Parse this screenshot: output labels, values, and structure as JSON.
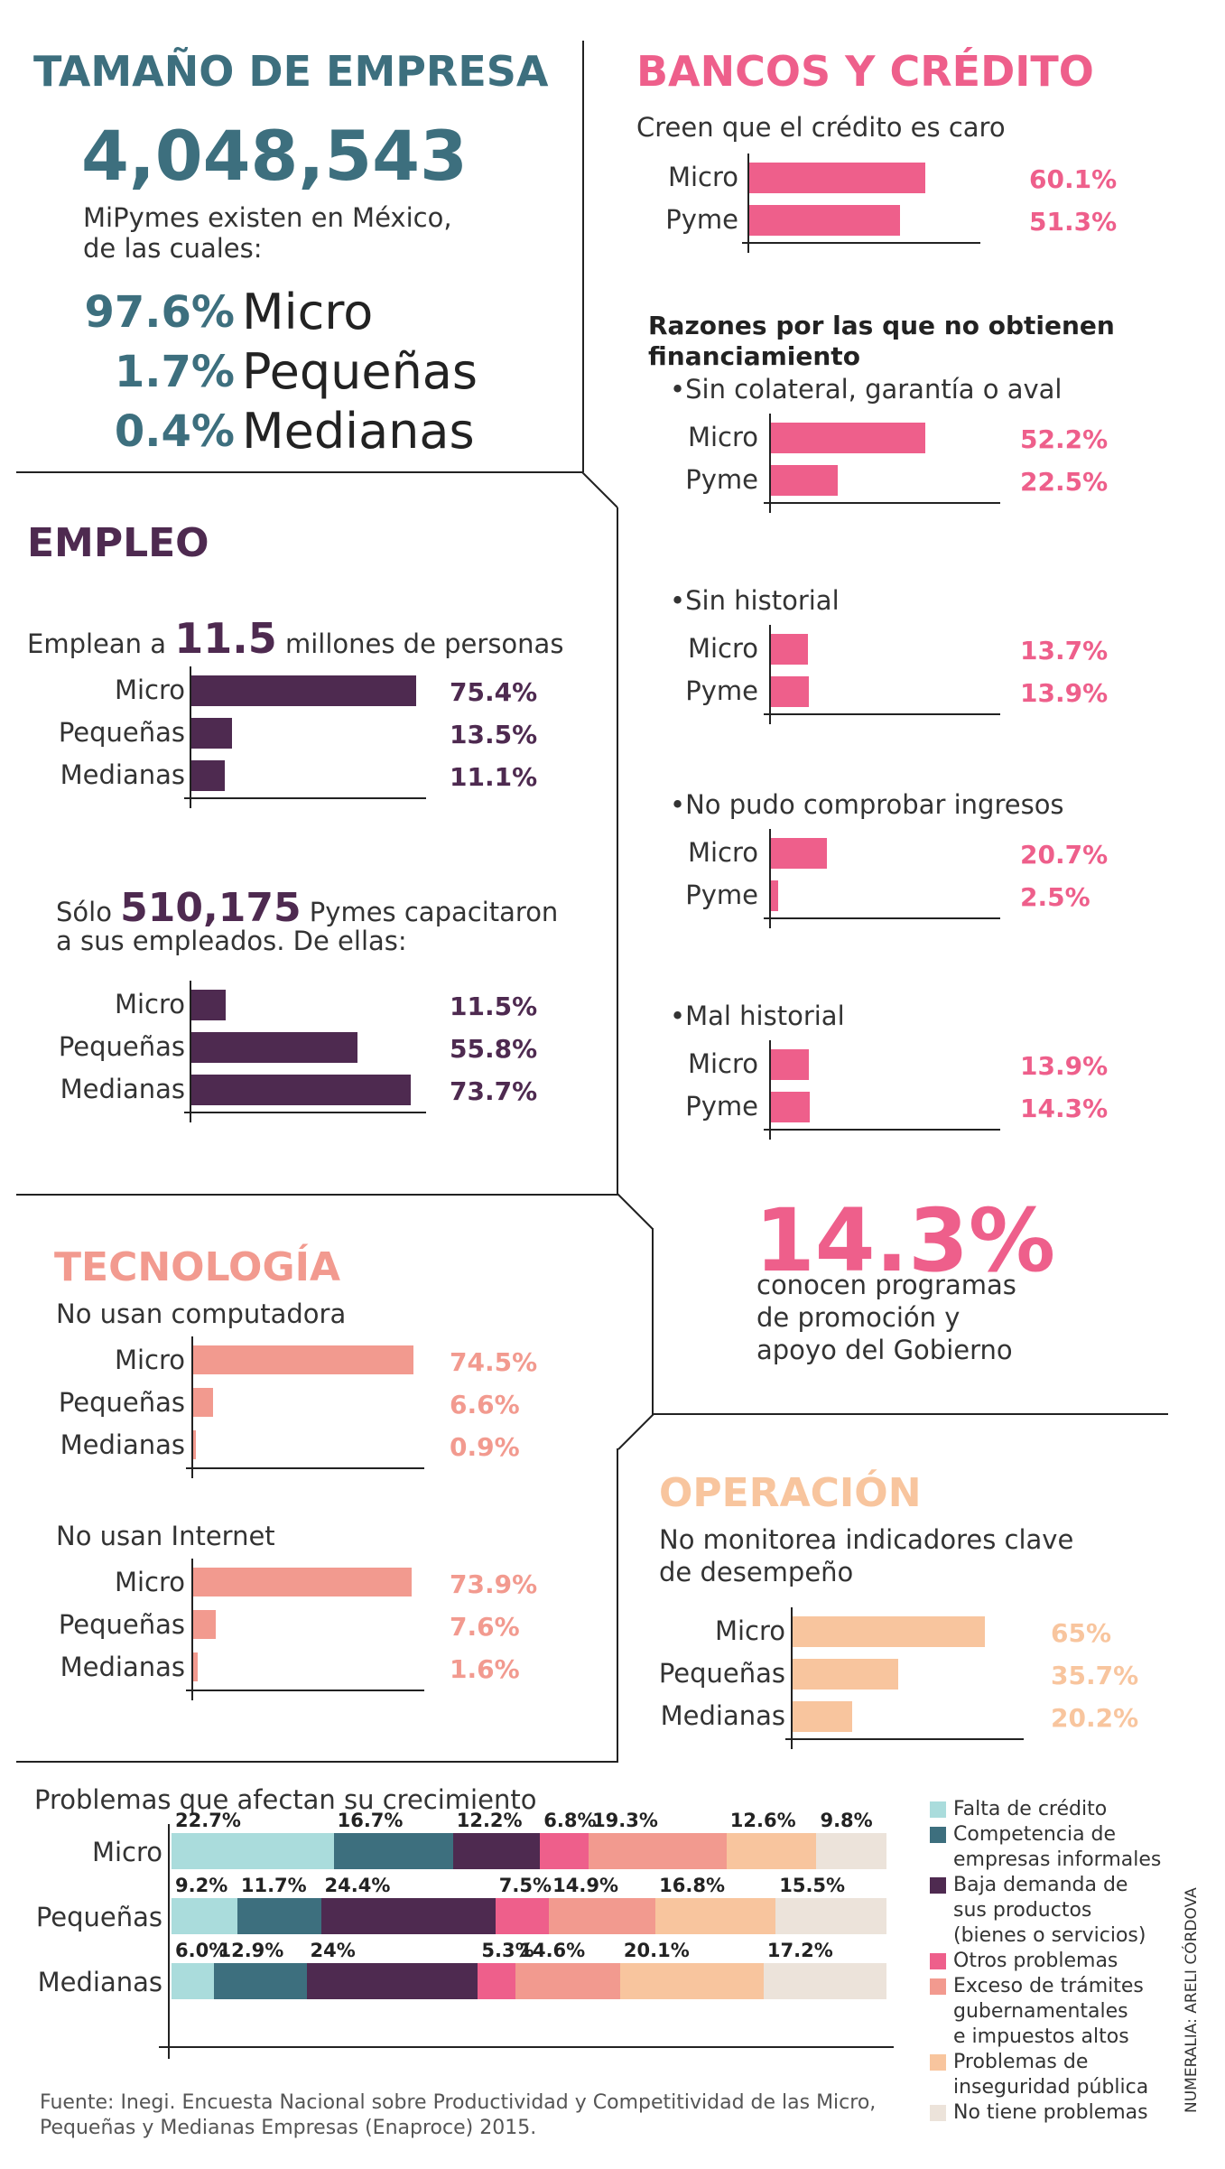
{
  "colors": {
    "teal": "#3d6f7e",
    "purple": "#4e2a50",
    "pink": "#ee5f8b",
    "salmon": "#f29a8f",
    "peach": "#f8c59e",
    "light_teal": "#aadcdc",
    "dark_teal": "#3d6f7e",
    "beige": "#ece3da"
  },
  "tamano": {
    "title": "TAMAÑO DE EMPRESA",
    "big_number": "4,048,543",
    "desc_1": "MiPymes existen en México,",
    "desc_2": "de las cuales:",
    "rows": [
      {
        "pct": "97.6%",
        "label": "Micro"
      },
      {
        "pct": "1.7%",
        "label": "Pequeñas"
      },
      {
        "pct": "0.4%",
        "label": "Medianas"
      }
    ]
  },
  "empleo": {
    "title": "EMPLEO",
    "line1_pre": "Emplean a",
    "line1_num": "11.5",
    "line1_post": "millones de personas",
    "line2_pre": "Sólo",
    "line2_num": "510,175",
    "line2_post": "Pymes capacitaron",
    "line2_b": "a sus empleados. De ellas:"
  },
  "tecnologia": {
    "title": "TECNOLOGÍA",
    "sub1": "No usan computadora",
    "sub2": "No usan Internet"
  },
  "bancos": {
    "title": "BANCOS Y CRÉDITO",
    "sub1": "Creen que el crédito es caro",
    "razones_1": "Razones por las que no obtienen",
    "razones_2": "financiamiento",
    "r1": "•Sin colateral, garantía o aval",
    "r2": "•Sin historial",
    "r3": "•No pudo comprobar ingresos",
    "r4": "•Mal historial",
    "big": "14.3%",
    "big_desc_1": "conocen programas",
    "big_desc_2": "de promoción y",
    "big_desc_3": "apoyo del Gobierno"
  },
  "operacion": {
    "title": "OPERACIÓN",
    "sub_1": "No monitorea indicadores clave",
    "sub_2": "de desempeño"
  },
  "problemas": {
    "title": "Problemas que afectan su crecimiento",
    "legend": [
      {
        "lines": [
          "Falta de crédito"
        ]
      },
      {
        "lines": [
          "Competencia de",
          "empresas informales"
        ]
      },
      {
        "lines": [
          "Baja demanda de",
          "sus productos",
          "(bienes o servicios)"
        ]
      },
      {
        "lines": [
          "Otros problemas"
        ]
      },
      {
        "lines": [
          "Exceso de trámites",
          "gubernamentales",
          "e impuestos altos"
        ]
      },
      {
        "lines": [
          "Problemas de",
          "inseguridad pública"
        ]
      },
      {
        "lines": [
          "No tiene problemas"
        ]
      }
    ]
  },
  "footer": {
    "source_1": "Fuente: Inegi. Encuesta Nacional sobre Productividad y Competitividad de las Micro,",
    "source_2": "Pequeñas y Medianas Empresas (Enaproce) 2015.",
    "credit": "NUMERALIA: ARELI CÓRDOVA"
  },
  "chart_data": [
    {
      "type": "bar",
      "id": "empleo_personas",
      "categories": [
        "Micro",
        "Pequeñas",
        "Medianas"
      ],
      "values": [
        75.4,
        13.5,
        11.1
      ],
      "value_labels": [
        "75.4%",
        "13.5%",
        "11.1%"
      ]
    },
    {
      "type": "bar",
      "id": "empleo_capacitaron",
      "categories": [
        "Micro",
        "Pequeñas",
        "Medianas"
      ],
      "values": [
        11.5,
        55.8,
        73.7
      ],
      "value_labels": [
        "11.5%",
        "55.8%",
        "73.7%"
      ]
    },
    {
      "type": "bar",
      "id": "computadora",
      "categories": [
        "Micro",
        "Pequeñas",
        "Medianas"
      ],
      "values": [
        74.5,
        6.6,
        0.9
      ],
      "value_labels": [
        "74.5%",
        "6.6%",
        "0.9%"
      ]
    },
    {
      "type": "bar",
      "id": "internet",
      "categories": [
        "Micro",
        "Pequeñas",
        "Medianas"
      ],
      "values": [
        73.9,
        7.6,
        1.6
      ],
      "value_labels": [
        "73.9%",
        "7.6%",
        "1.6%"
      ]
    },
    {
      "type": "bar",
      "id": "credito_caro",
      "categories": [
        "Micro",
        "Pyme"
      ],
      "values": [
        60.1,
        51.3
      ],
      "value_labels": [
        "60.1%",
        "51.3%"
      ]
    },
    {
      "type": "bar",
      "id": "sin_colateral",
      "categories": [
        "Micro",
        "Pyme"
      ],
      "values": [
        52.2,
        22.5
      ],
      "value_labels": [
        "52.2%",
        "22.5%"
      ]
    },
    {
      "type": "bar",
      "id": "sin_historial",
      "categories": [
        "Micro",
        "Pyme"
      ],
      "values": [
        13.7,
        13.9
      ],
      "value_labels": [
        "13.7%",
        "13.9%"
      ]
    },
    {
      "type": "bar",
      "id": "ingresos",
      "categories": [
        "Micro",
        "Pyme"
      ],
      "values": [
        20.7,
        2.5
      ],
      "value_labels": [
        "20.7%",
        "2.5%"
      ]
    },
    {
      "type": "bar",
      "id": "mal_historial",
      "categories": [
        "Micro",
        "Pyme"
      ],
      "values": [
        13.9,
        14.3
      ],
      "value_labels": [
        "13.9%",
        "14.3%"
      ]
    },
    {
      "type": "bar",
      "id": "operacion",
      "categories": [
        "Micro",
        "Pequeñas",
        "Medianas"
      ],
      "values": [
        65,
        35.7,
        20.2
      ],
      "value_labels": [
        "65%",
        "35.7%",
        "20.2%"
      ]
    },
    {
      "type": "bar",
      "id": "problemas",
      "stacked": true,
      "categories": [
        "Micro",
        "Pequeñas",
        "Medianas"
      ],
      "series": [
        {
          "name": "Falta de crédito",
          "values": [
            22.7,
            9.2,
            6.0
          ],
          "labels": [
            "22.7%",
            "9.2%",
            "6.0%"
          ]
        },
        {
          "name": "Competencia de empresas informales",
          "values": [
            16.7,
            11.7,
            12.9
          ],
          "labels": [
            "16.7%",
            "11.7%",
            "12.9%"
          ]
        },
        {
          "name": "Baja demanda de sus productos (bienes o servicios)",
          "values": [
            12.2,
            24.4,
            24
          ],
          "labels": [
            "12.2%",
            "24.4%",
            "24%"
          ]
        },
        {
          "name": "Otros problemas",
          "values": [
            6.8,
            7.5,
            5.3
          ],
          "labels": [
            "6.8%",
            "7.5%",
            "5.3%"
          ]
        },
        {
          "name": "Exceso de trámites gubernamentales e impuestos altos",
          "values": [
            19.3,
            14.9,
            14.6
          ],
          "labels": [
            "19.3%",
            "14.9%",
            "14.6%"
          ]
        },
        {
          "name": "Problemas de inseguridad pública",
          "values": [
            12.6,
            16.8,
            20.1
          ],
          "labels": [
            "12.6%",
            "16.8%",
            "20.1%"
          ]
        },
        {
          "name": "No tiene problemas",
          "values": [
            9.8,
            15.5,
            17.2
          ],
          "labels": [
            "9.8%",
            "15.5%",
            "17.2%"
          ]
        }
      ]
    }
  ]
}
